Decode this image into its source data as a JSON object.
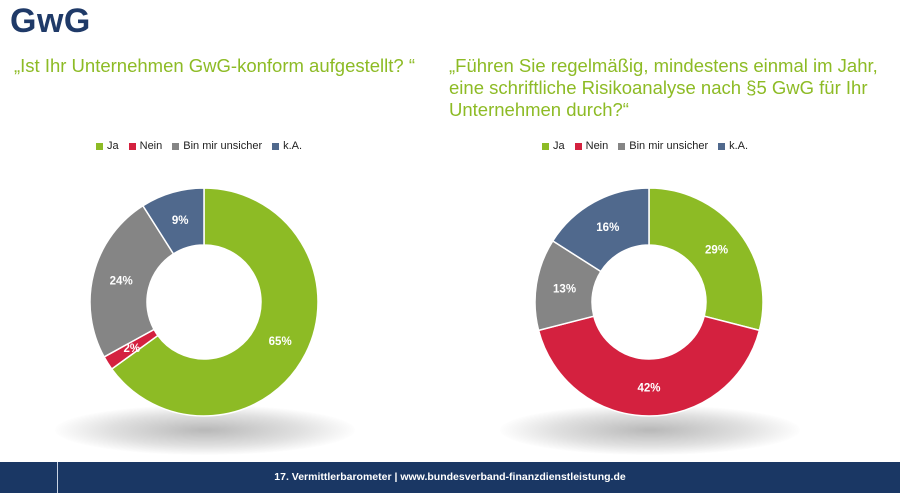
{
  "title": "GwG",
  "footer": {
    "text": "17. Vermittlerbarometer | www.bundesverband-finanzdienstleistung.de"
  },
  "colors": {
    "title": "#1f3a68",
    "question": "#8dbb25",
    "footer_bg": "#1a3764"
  },
  "chart_data": [
    {
      "type": "pie",
      "donut": true,
      "title": "„Ist Ihr Unternehmen GwG-konform aufgestellt? “",
      "legend_position": "top",
      "categories": [
        "Ja",
        "Nein",
        "Bin mir unsicher",
        "k.A."
      ],
      "values": [
        65,
        2,
        24,
        9
      ],
      "labels": [
        "65%",
        "2%",
        "24%",
        "9%"
      ],
      "colors": [
        "#8dbb25",
        "#d4213f",
        "#858585",
        "#50698d"
      ]
    },
    {
      "type": "pie",
      "donut": true,
      "title": "„Führen Sie regelmäßig, mindestens einmal im Jahr, eine schriftliche Risikoanalyse nach §5 GwG für Ihr Unternehmen durch?“",
      "legend_position": "top",
      "categories": [
        "Ja",
        "Nein",
        "Bin mir unsicher",
        "k.A."
      ],
      "values": [
        29,
        42,
        13,
        16
      ],
      "labels": [
        "29%",
        "42%",
        "13%",
        "16%"
      ],
      "colors": [
        "#8dbb25",
        "#d4213f",
        "#858585",
        "#50698d"
      ]
    }
  ]
}
